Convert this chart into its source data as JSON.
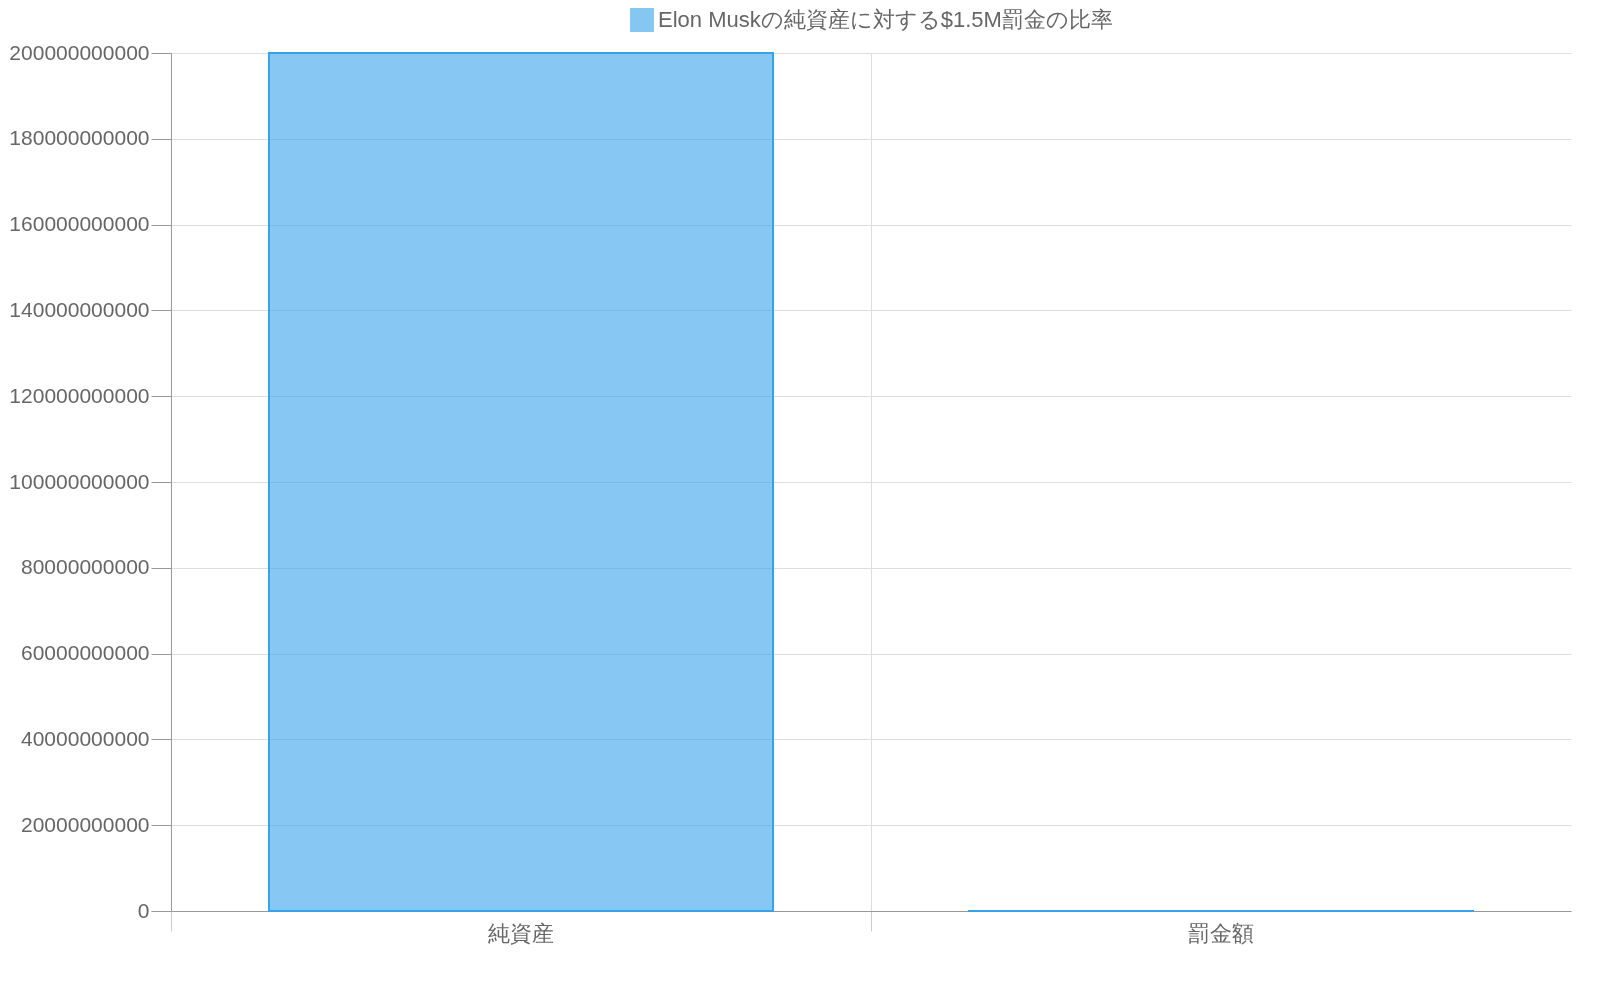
{
  "chart_data": {
    "type": "bar",
    "categories": [
      "純資産",
      "罰金額"
    ],
    "series": [
      {
        "name": "Elon Muskの純資産に対する$1.5M罰金の比率",
        "color": "#36a2eb",
        "values": [
          200000000000,
          1500000
        ]
      }
    ],
    "ylim": [
      0,
      200000000000
    ],
    "yticks": [
      0,
      20000000000,
      40000000000,
      60000000000,
      80000000000,
      100000000000,
      120000000000,
      140000000000,
      160000000000,
      180000000000,
      200000000000
    ],
    "grid": true,
    "legend": "top"
  }
}
